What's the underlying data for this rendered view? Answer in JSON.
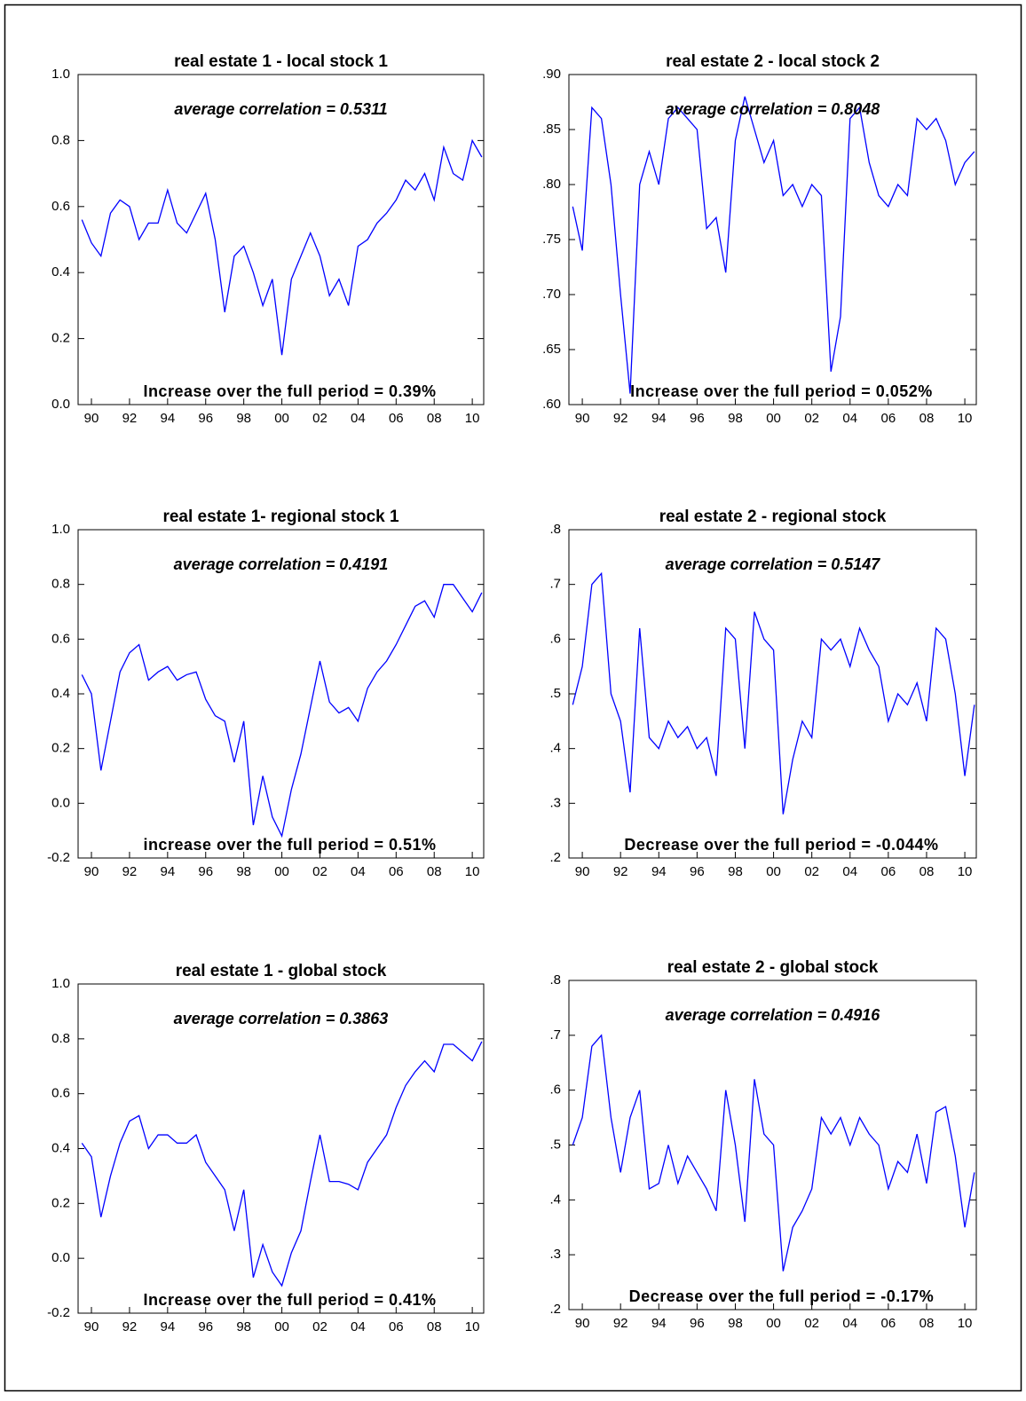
{
  "chart_data": [
    {
      "type": "line",
      "title": "real estate 1 - local stock 1",
      "annotations": [
        "average correlation = 0.5311",
        "Increase over the full period = 0.39%"
      ],
      "color": "#0000ff",
      "x": [
        1989.5,
        1990,
        1990.5,
        1991,
        1991.5,
        1992,
        1992.5,
        1993,
        1993.5,
        1994,
        1994.5,
        1995,
        1995.5,
        1996,
        1996.5,
        1997,
        1997.5,
        1998,
        1998.5,
        1999,
        1999.5,
        2000,
        2000.5,
        2001,
        2001.5,
        2002,
        2002.5,
        2003,
        2003.5,
        2004,
        2004.5,
        2005,
        2005.5,
        2006,
        2006.5,
        2007,
        2007.5,
        2008,
        2008.5,
        2009,
        2009.5,
        2010,
        2010.5
      ],
      "values": [
        0.56,
        0.49,
        0.45,
        0.58,
        0.62,
        0.6,
        0.5,
        0.55,
        0.55,
        0.65,
        0.55,
        0.52,
        0.58,
        0.64,
        0.5,
        0.28,
        0.45,
        0.48,
        0.4,
        0.3,
        0.38,
        0.15,
        0.38,
        0.45,
        0.52,
        0.45,
        0.33,
        0.38,
        0.3,
        0.48,
        0.5,
        0.55,
        0.58,
        0.62,
        0.68,
        0.65,
        0.7,
        0.62,
        0.78,
        0.7,
        0.68,
        0.8,
        0.75
      ],
      "xlim": [
        1989.3,
        2010.6
      ],
      "xticks": [
        {
          "value": 1990,
          "label": "90"
        },
        {
          "value": 1992,
          "label": "92"
        },
        {
          "value": 1994,
          "label": "94"
        },
        {
          "value": 1996,
          "label": "96"
        },
        {
          "value": 1998,
          "label": "98"
        },
        {
          "value": 2000,
          "label": "00"
        },
        {
          "value": 2002,
          "label": "02"
        },
        {
          "value": 2004,
          "label": "04"
        },
        {
          "value": 2006,
          "label": "06"
        },
        {
          "value": 2008,
          "label": "08"
        },
        {
          "value": 2010,
          "label": "10"
        }
      ],
      "ylim": [
        0,
        1
      ],
      "yticks": [
        {
          "value": 0,
          "label": "0.0"
        },
        0.2,
        0.4,
        0.6,
        0.8,
        {
          "value": 1,
          "label": "1.0"
        }
      ]
    },
    {
      "type": "line",
      "title": "real estate 2 - local stock 2",
      "annotations": [
        "average correlation = 0.8048",
        "Increase over the full period = 0.052%"
      ],
      "color": "#0000ff",
      "x": [
        1989.5,
        1990,
        1990.5,
        1991,
        1991.5,
        1992,
        1992.5,
        1993,
        1993.5,
        1994,
        1994.5,
        1995,
        1995.5,
        1996,
        1996.5,
        1997,
        1997.5,
        1998,
        1998.5,
        1999,
        1999.5,
        2000,
        2000.5,
        2001,
        2001.5,
        2002,
        2002.5,
        2003,
        2003.5,
        2004,
        2004.5,
        2005,
        2005.5,
        2006,
        2006.5,
        2007,
        2007.5,
        2008,
        2008.5,
        2009,
        2009.5,
        2010,
        2010.5
      ],
      "values": [
        0.78,
        0.74,
        0.87,
        0.86,
        0.8,
        0.7,
        0.61,
        0.8,
        0.83,
        0.8,
        0.86,
        0.87,
        0.86,
        0.85,
        0.76,
        0.77,
        0.72,
        0.84,
        0.88,
        0.85,
        0.82,
        0.84,
        0.79,
        0.8,
        0.78,
        0.8,
        0.79,
        0.63,
        0.68,
        0.86,
        0.87,
        0.82,
        0.79,
        0.78,
        0.8,
        0.79,
        0.86,
        0.85,
        0.86,
        0.84,
        0.8,
        0.82,
        0.83
      ],
      "xlim": [
        1989.3,
        2010.6
      ],
      "xticks": [
        {
          "value": 1990,
          "label": "90"
        },
        {
          "value": 1992,
          "label": "92"
        },
        {
          "value": 1994,
          "label": "94"
        },
        {
          "value": 1996,
          "label": "96"
        },
        {
          "value": 1998,
          "label": "98"
        },
        {
          "value": 2000,
          "label": "00"
        },
        {
          "value": 2002,
          "label": "02"
        },
        {
          "value": 2004,
          "label": "04"
        },
        {
          "value": 2006,
          "label": "06"
        },
        {
          "value": 2008,
          "label": "08"
        },
        {
          "value": 2010,
          "label": "10"
        }
      ],
      "ylim": [
        0.6,
        0.9
      ],
      "yticks": [
        {
          "value": 0.6,
          "label": ".60"
        },
        {
          "value": 0.65,
          "label": ".65"
        },
        {
          "value": 0.7,
          "label": ".70"
        },
        {
          "value": 0.75,
          "label": ".75"
        },
        {
          "value": 0.8,
          "label": ".80"
        },
        {
          "value": 0.85,
          "label": ".85"
        },
        {
          "value": 0.9,
          "label": ".90"
        }
      ]
    },
    {
      "type": "line",
      "title": "real estate 1- regional stock 1",
      "annotations": [
        "average correlation = 0.4191",
        "increase over the full period = 0.51%"
      ],
      "color": "#0000ff",
      "x": [
        1989.5,
        1990,
        1990.5,
        1991,
        1991.5,
        1992,
        1992.5,
        1993,
        1993.5,
        1994,
        1994.5,
        1995,
        1995.5,
        1996,
        1996.5,
        1997,
        1997.5,
        1998,
        1998.5,
        1999,
        1999.5,
        2000,
        2000.5,
        2001,
        2001.5,
        2002,
        2002.5,
        2003,
        2003.5,
        2004,
        2004.5,
        2005,
        2005.5,
        2006,
        2006.5,
        2007,
        2007.5,
        2008,
        2008.5,
        2009,
        2009.5,
        2010,
        2010.5
      ],
      "values": [
        0.47,
        0.4,
        0.12,
        0.3,
        0.48,
        0.55,
        0.58,
        0.45,
        0.48,
        0.5,
        0.45,
        0.47,
        0.48,
        0.38,
        0.32,
        0.3,
        0.15,
        0.3,
        -0.08,
        0.1,
        -0.05,
        -0.12,
        0.05,
        0.18,
        0.35,
        0.52,
        0.37,
        0.33,
        0.35,
        0.3,
        0.42,
        0.48,
        0.52,
        0.58,
        0.65,
        0.72,
        0.74,
        0.68,
        0.8,
        0.8,
        0.75,
        0.7,
        0.77
      ],
      "xlim": [
        1989.3,
        2010.6
      ],
      "xticks": [
        {
          "value": 1990,
          "label": "90"
        },
        {
          "value": 1992,
          "label": "92"
        },
        {
          "value": 1994,
          "label": "94"
        },
        {
          "value": 1996,
          "label": "96"
        },
        {
          "value": 1998,
          "label": "98"
        },
        {
          "value": 2000,
          "label": "00"
        },
        {
          "value": 2002,
          "label": "02"
        },
        {
          "value": 2004,
          "label": "04"
        },
        {
          "value": 2006,
          "label": "06"
        },
        {
          "value": 2008,
          "label": "08"
        },
        {
          "value": 2010,
          "label": "10"
        }
      ],
      "ylim": [
        -0.2,
        1
      ],
      "yticks": [
        -0.2,
        {
          "value": 0,
          "label": "0.0"
        },
        0.2,
        0.4,
        0.6,
        0.8,
        {
          "value": 1,
          "label": "1.0"
        }
      ]
    },
    {
      "type": "line",
      "title": "real estate 2 - regional stock",
      "annotations": [
        "average correlation = 0.5147",
        "Decrease over the full period = -0.044%"
      ],
      "color": "#0000ff",
      "x": [
        1989.5,
        1990,
        1990.5,
        1991,
        1991.5,
        1992,
        1992.5,
        1993,
        1993.5,
        1994,
        1994.5,
        1995,
        1995.5,
        1996,
        1996.5,
        1997,
        1997.5,
        1998,
        1998.5,
        1999,
        1999.5,
        2000,
        2000.5,
        2001,
        2001.5,
        2002,
        2002.5,
        2003,
        2003.5,
        2004,
        2004.5,
        2005,
        2005.5,
        2006,
        2006.5,
        2007,
        2007.5,
        2008,
        2008.5,
        2009,
        2009.5,
        2010,
        2010.5
      ],
      "values": [
        0.48,
        0.55,
        0.7,
        0.72,
        0.5,
        0.45,
        0.32,
        0.62,
        0.42,
        0.4,
        0.45,
        0.42,
        0.44,
        0.4,
        0.42,
        0.35,
        0.62,
        0.6,
        0.4,
        0.65,
        0.6,
        0.58,
        0.28,
        0.38,
        0.45,
        0.42,
        0.6,
        0.58,
        0.6,
        0.55,
        0.62,
        0.58,
        0.55,
        0.45,
        0.5,
        0.48,
        0.52,
        0.45,
        0.62,
        0.6,
        0.5,
        0.35,
        0.48
      ],
      "xlim": [
        1989.3,
        2010.6
      ],
      "xticks": [
        {
          "value": 1990,
          "label": "90"
        },
        {
          "value": 1992,
          "label": "92"
        },
        {
          "value": 1994,
          "label": "94"
        },
        {
          "value": 1996,
          "label": "96"
        },
        {
          "value": 1998,
          "label": "98"
        },
        {
          "value": 2000,
          "label": "00"
        },
        {
          "value": 2002,
          "label": "02"
        },
        {
          "value": 2004,
          "label": "04"
        },
        {
          "value": 2006,
          "label": "06"
        },
        {
          "value": 2008,
          "label": "08"
        },
        {
          "value": 2010,
          "label": "10"
        }
      ],
      "ylim": [
        0.2,
        0.8
      ],
      "yticks": [
        {
          "value": 0.2,
          "label": ".2"
        },
        {
          "value": 0.3,
          "label": ".3"
        },
        {
          "value": 0.4,
          "label": ".4"
        },
        {
          "value": 0.5,
          "label": ".5"
        },
        {
          "value": 0.6,
          "label": ".6"
        },
        {
          "value": 0.7,
          "label": ".7"
        },
        {
          "value": 0.8,
          "label": ".8"
        }
      ]
    },
    {
      "type": "line",
      "title": "real estate 1 - global stock",
      "annotations": [
        "average correlation = 0.3863",
        "Increase over the full period = 0.41%"
      ],
      "color": "#0000ff",
      "x": [
        1989.5,
        1990,
        1990.5,
        1991,
        1991.5,
        1992,
        1992.5,
        1993,
        1993.5,
        1994,
        1994.5,
        1995,
        1995.5,
        1996,
        1996.5,
        1997,
        1997.5,
        1998,
        1998.5,
        1999,
        1999.5,
        2000,
        2000.5,
        2001,
        2001.5,
        2002,
        2002.5,
        2003,
        2003.5,
        2004,
        2004.5,
        2005,
        2005.5,
        2006,
        2006.5,
        2007,
        2007.5,
        2008,
        2008.5,
        2009,
        2009.5,
        2010,
        2010.5
      ],
      "values": [
        0.42,
        0.37,
        0.15,
        0.3,
        0.42,
        0.5,
        0.52,
        0.4,
        0.45,
        0.45,
        0.42,
        0.42,
        0.45,
        0.35,
        0.3,
        0.25,
        0.1,
        0.25,
        -0.07,
        0.05,
        -0.05,
        -0.1,
        0.02,
        0.1,
        0.28,
        0.45,
        0.28,
        0.28,
        0.27,
        0.25,
        0.35,
        0.4,
        0.45,
        0.55,
        0.63,
        0.68,
        0.72,
        0.68,
        0.78,
        0.78,
        0.75,
        0.72,
        0.79
      ],
      "xlim": [
        1989.3,
        2010.6
      ],
      "xticks": [
        {
          "value": 1990,
          "label": "90"
        },
        {
          "value": 1992,
          "label": "92"
        },
        {
          "value": 1994,
          "label": "94"
        },
        {
          "value": 1996,
          "label": "96"
        },
        {
          "value": 1998,
          "label": "98"
        },
        {
          "value": 2000,
          "label": "00"
        },
        {
          "value": 2002,
          "label": "02"
        },
        {
          "value": 2004,
          "label": "04"
        },
        {
          "value": 2006,
          "label": "06"
        },
        {
          "value": 2008,
          "label": "08"
        },
        {
          "value": 2010,
          "label": "10"
        }
      ],
      "ylim": [
        -0.2,
        1
      ],
      "yticks": [
        -0.2,
        {
          "value": 0,
          "label": "0.0"
        },
        0.2,
        0.4,
        0.6,
        0.8,
        {
          "value": 1,
          "label": "1.0"
        }
      ]
    },
    {
      "type": "line",
      "title": "real estate 2 - global stock",
      "annotations": [
        "average correlation = 0.4916",
        "Decrease over the full period = -0.17%"
      ],
      "color": "#0000ff",
      "x": [
        1989.5,
        1990,
        1990.5,
        1991,
        1991.5,
        1992,
        1992.5,
        1993,
        1993.5,
        1994,
        1994.5,
        1995,
        1995.5,
        1996,
        1996.5,
        1997,
        1997.5,
        1998,
        1998.5,
        1999,
        1999.5,
        2000,
        2000.5,
        2001,
        2001.5,
        2002,
        2002.5,
        2003,
        2003.5,
        2004,
        2004.5,
        2005,
        2005.5,
        2006,
        2006.5,
        2007,
        2007.5,
        2008,
        2008.5,
        2009,
        2009.5,
        2010,
        2010.5
      ],
      "values": [
        0.5,
        0.55,
        0.68,
        0.7,
        0.55,
        0.45,
        0.55,
        0.6,
        0.42,
        0.43,
        0.5,
        0.43,
        0.48,
        0.45,
        0.42,
        0.38,
        0.6,
        0.5,
        0.36,
        0.62,
        0.52,
        0.5,
        0.27,
        0.35,
        0.38,
        0.42,
        0.55,
        0.52,
        0.55,
        0.5,
        0.55,
        0.52,
        0.5,
        0.42,
        0.47,
        0.45,
        0.52,
        0.43,
        0.56,
        0.57,
        0.48,
        0.35,
        0.45
      ],
      "xlim": [
        1989.3,
        2010.6
      ],
      "xticks": [
        {
          "value": 1990,
          "label": "90"
        },
        {
          "value": 1992,
          "label": "92"
        },
        {
          "value": 1994,
          "label": "94"
        },
        {
          "value": 1996,
          "label": "96"
        },
        {
          "value": 1998,
          "label": "98"
        },
        {
          "value": 2000,
          "label": "00"
        },
        {
          "value": 2002,
          "label": "02"
        },
        {
          "value": 2004,
          "label": "04"
        },
        {
          "value": 2006,
          "label": "06"
        },
        {
          "value": 2008,
          "label": "08"
        },
        {
          "value": 2010,
          "label": "10"
        }
      ],
      "ylim": [
        0.2,
        0.8
      ],
      "yticks": [
        {
          "value": 0.2,
          "label": ".2"
        },
        {
          "value": 0.3,
          "label": ".3"
        },
        {
          "value": 0.4,
          "label": ".4"
        },
        {
          "value": 0.5,
          "label": ".5"
        },
        {
          "value": 0.6,
          "label": ".6"
        },
        {
          "value": 0.7,
          "label": ".7"
        },
        {
          "value": 0.8,
          "label": ".8"
        }
      ]
    }
  ]
}
